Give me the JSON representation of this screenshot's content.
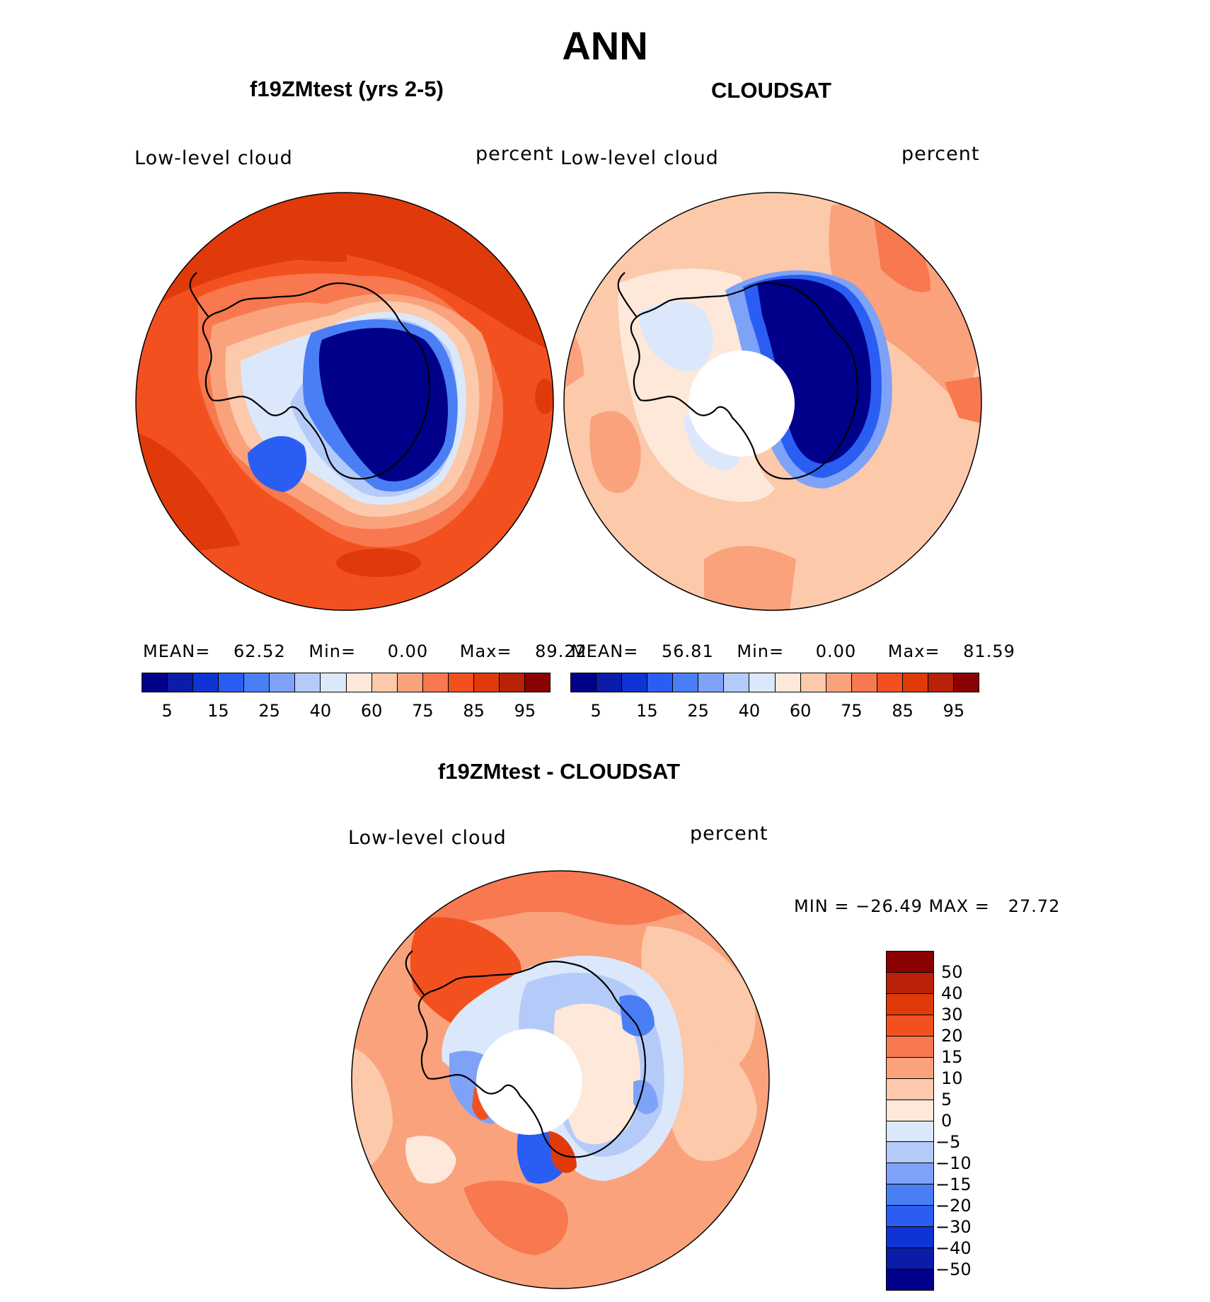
{
  "figure_title": "ANN",
  "panels": {
    "model": {
      "title": "f19ZMtest (yrs 2-5)",
      "left_label": "Low-level cloud",
      "right_label": "percent",
      "stats": {
        "mean_label": "MEAN=",
        "mean": "62.52",
        "min_label": "Min=",
        "min": "0.00",
        "max_label": "Max=",
        "max": "89.22"
      }
    },
    "obs": {
      "title": "CLOUDSAT",
      "left_label": "Low-level cloud",
      "right_label": "percent",
      "stats": {
        "mean_label": "MEAN=",
        "mean": "56.81",
        "min_label": "Min=",
        "min": "0.00",
        "max_label": "Max=",
        "max": "81.59"
      }
    },
    "diff": {
      "title": "f19ZMtest - CLOUDSAT",
      "left_label": "Low-level cloud",
      "right_label": "percent",
      "minmax": "MIN = −26.49 MAX =   27.72"
    }
  },
  "colorbar_abs": {
    "colors": [
      "#00008b",
      "#0a1ca8",
      "#0f33d4",
      "#2a5ef2",
      "#4a7ef5",
      "#7ea2f7",
      "#b4cbf9",
      "#dbe8fc",
      "#fde8da",
      "#fcc9ab",
      "#faa27c",
      "#f8784f",
      "#f35020",
      "#e03a0a",
      "#b92108",
      "#8b0000"
    ],
    "tick_labels": [
      "5",
      "15",
      "25",
      "40",
      "60",
      "75",
      "85",
      "95"
    ]
  },
  "colorbar_diff": {
    "colors_top_to_bottom": [
      "#8b0000",
      "#b92108",
      "#e03a0a",
      "#f35020",
      "#f8784f",
      "#faa27c",
      "#fcc9ab",
      "#fde8da",
      "#dbe8fc",
      "#b4cbf9",
      "#7ea2f7",
      "#4a7ef5",
      "#2a5ef2",
      "#0f33d4",
      "#0a1ca8",
      "#00008b"
    ],
    "tick_labels": [
      "50",
      "40",
      "30",
      "20",
      "15",
      "10",
      "5",
      "0",
      "−5",
      "−10",
      "−15",
      "−20",
      "−30",
      "−40",
      "−50"
    ]
  },
  "chart_data": [
    {
      "type": "heatmap",
      "projection": "south polar stereographic",
      "title": "f19ZMtest (yrs 2-5)",
      "variable": "Low-level cloud",
      "units": "percent",
      "season": "ANN",
      "mean": 62.52,
      "min": 0.0,
      "max": 89.22,
      "contour_levels": [
        5,
        10,
        15,
        20,
        25,
        30,
        40,
        50,
        60,
        70,
        75,
        80,
        85,
        90,
        95
      ]
    },
    {
      "type": "heatmap",
      "projection": "south polar stereographic",
      "title": "CLOUDSAT",
      "variable": "Low-level cloud",
      "units": "percent",
      "season": "ANN",
      "mean": 56.81,
      "min": 0.0,
      "max": 81.59,
      "contour_levels": [
        5,
        10,
        15,
        20,
        25,
        30,
        40,
        50,
        60,
        70,
        75,
        80,
        85,
        90,
        95
      ]
    },
    {
      "type": "heatmap",
      "projection": "south polar stereographic",
      "title": "f19ZMtest - CLOUDSAT",
      "variable": "Low-level cloud",
      "units": "percent",
      "season": "ANN",
      "min": -26.49,
      "max": 27.72,
      "contour_levels": [
        -50,
        -40,
        -30,
        -20,
        -15,
        -10,
        -5,
        0,
        5,
        10,
        15,
        20,
        30,
        40,
        50
      ]
    }
  ]
}
